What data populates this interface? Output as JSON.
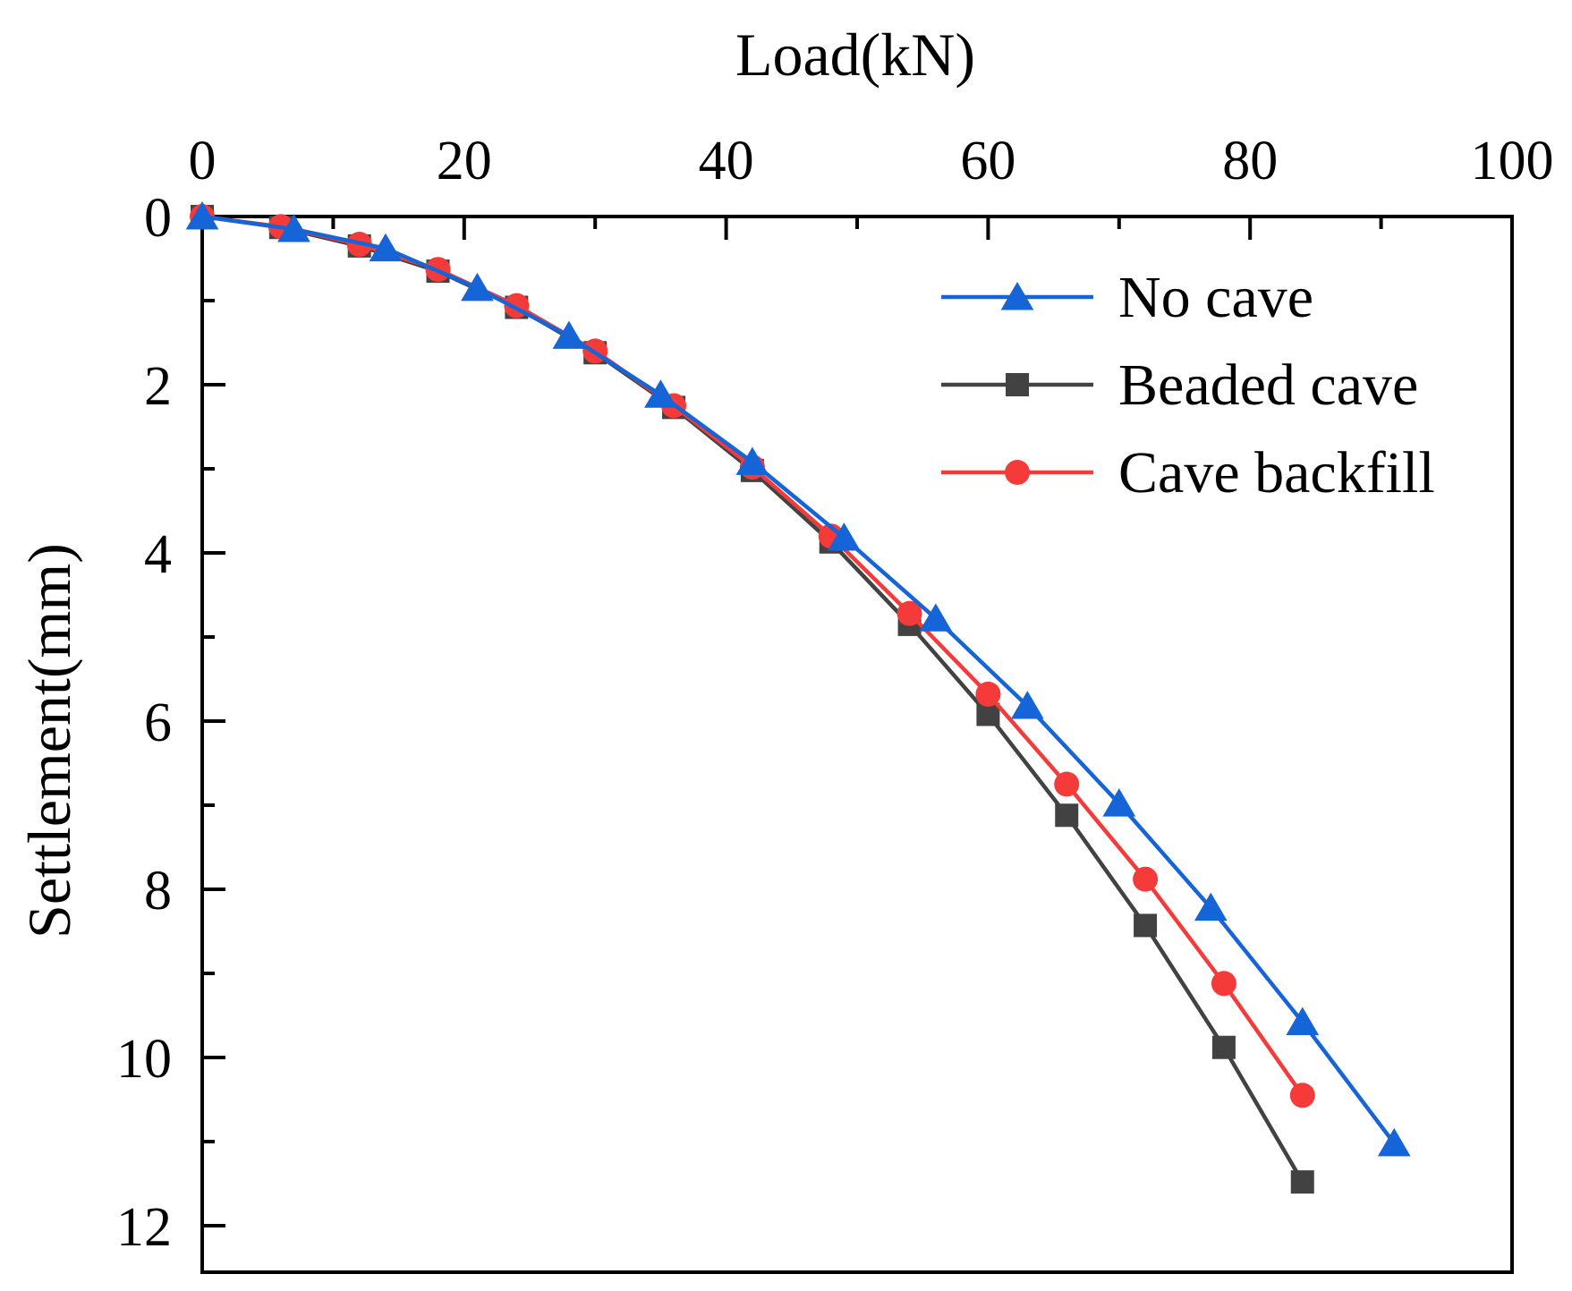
{
  "chart_data": {
    "type": "line",
    "xlabel": "Load(kN)",
    "ylabel": "Settlement(mm)",
    "xlim": [
      0,
      100
    ],
    "ylim": [
      0,
      12.5
    ],
    "x_axis_position": "top",
    "y_axis_inverted": true,
    "xticks": [
      0,
      20,
      40,
      60,
      80,
      100
    ],
    "yticks": [
      0,
      2,
      4,
      6,
      8,
      10,
      12
    ],
    "grid": false,
    "legend_position": "top-right",
    "series": [
      {
        "name": "No cave",
        "color": "#1565d8",
        "marker": "triangle",
        "points": [
          [
            0,
            0
          ],
          [
            7,
            0.15
          ],
          [
            14,
            0.38
          ],
          [
            21,
            0.85
          ],
          [
            28,
            1.42
          ],
          [
            35,
            2.12
          ],
          [
            42,
            2.92
          ],
          [
            49,
            3.82
          ],
          [
            56,
            4.78
          ],
          [
            63,
            5.82
          ],
          [
            70,
            6.98
          ],
          [
            77,
            8.22
          ],
          [
            84,
            9.58
          ],
          [
            91,
            11.02
          ]
        ]
      },
      {
        "name": "Beaded cave",
        "color": "#424242",
        "marker": "square",
        "points": [
          [
            0,
            0
          ],
          [
            6,
            0.13
          ],
          [
            12,
            0.35
          ],
          [
            18,
            0.65
          ],
          [
            24,
            1.08
          ],
          [
            30,
            1.62
          ],
          [
            36,
            2.27
          ],
          [
            42,
            3.02
          ],
          [
            48,
            3.87
          ],
          [
            54,
            4.85
          ],
          [
            60,
            5.92
          ],
          [
            66,
            7.12
          ],
          [
            72,
            8.43
          ],
          [
            78,
            9.88
          ],
          [
            84,
            11.48
          ]
        ]
      },
      {
        "name": "Cave backfill",
        "color": "#f53a3a",
        "marker": "circle",
        "points": [
          [
            0,
            0
          ],
          [
            6,
            0.12
          ],
          [
            12,
            0.33
          ],
          [
            18,
            0.63
          ],
          [
            24,
            1.06
          ],
          [
            30,
            1.6
          ],
          [
            36,
            2.25
          ],
          [
            42,
            2.98
          ],
          [
            48,
            3.8
          ],
          [
            54,
            4.72
          ],
          [
            60,
            5.68
          ],
          [
            66,
            6.75
          ],
          [
            72,
            7.88
          ],
          [
            78,
            9.12
          ],
          [
            84,
            10.45
          ]
        ]
      }
    ]
  }
}
